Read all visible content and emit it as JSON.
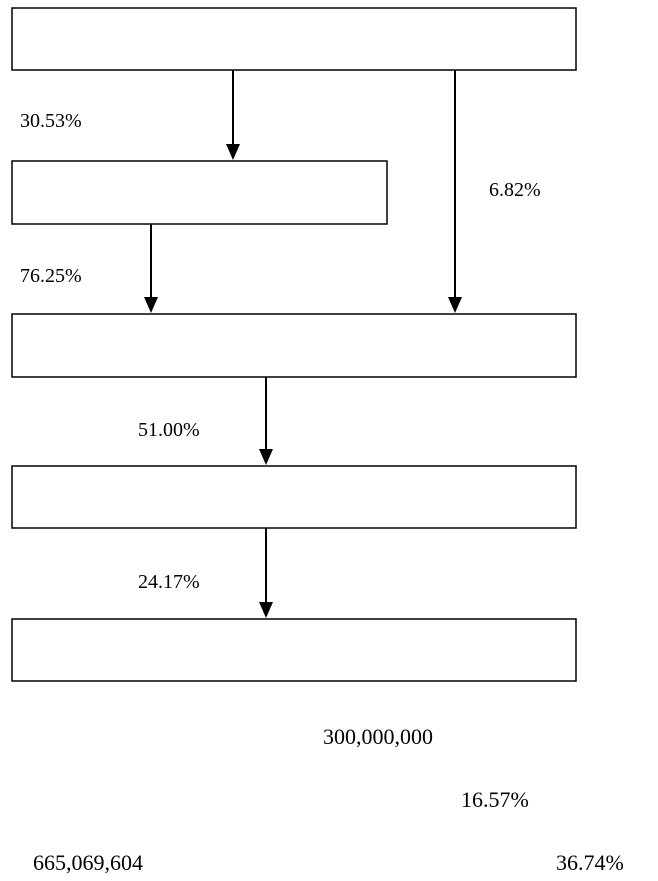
{
  "diagram": {
    "boxes": [
      "",
      "",
      "",
      "",
      ""
    ],
    "edges": [
      {
        "from": 0,
        "to": 1,
        "label": "30.53%"
      },
      {
        "from": 0,
        "to": 2,
        "label": "6.82%"
      },
      {
        "from": 1,
        "to": 2,
        "label": "76.25%"
      },
      {
        "from": 2,
        "to": 3,
        "label": "51.00%"
      },
      {
        "from": 3,
        "to": 4,
        "label": "24.17%"
      }
    ]
  },
  "notes": {
    "amount_top": "300,000,000",
    "pct_middle": "16.57%",
    "amount_bottom": "665,069,604",
    "pct_bottom": "36.74%"
  },
  "colors": {
    "stroke": "#000000",
    "background": "#ffffff"
  }
}
